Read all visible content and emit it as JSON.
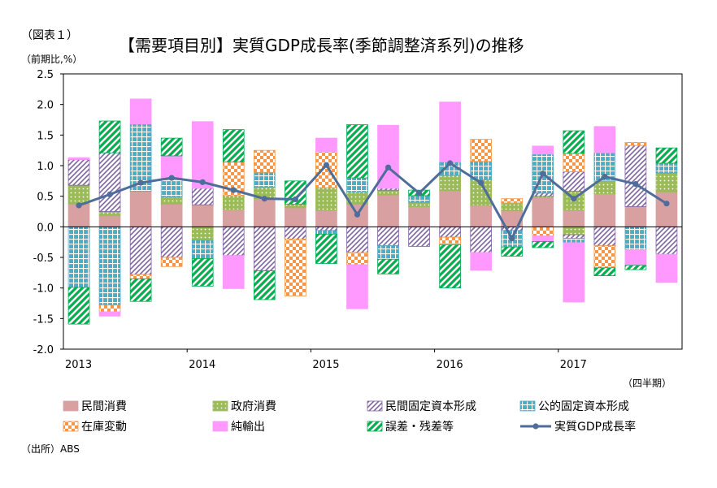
{
  "figure_label": "（図表１）",
  "unit_label": "（前期比,%）",
  "title": "【需要項目別】実質GDP成長率(季節調整済系列)の推移",
  "xaxis_unit": "（四半期）",
  "source": "（出所）ABS",
  "colors": {
    "private_consumption": "#D8A0A0",
    "government_consumption": "#9BBB59",
    "private_fixed_investment": "#8064A2",
    "public_fixed_investment": "#4BACC6",
    "inventory": "#F79646",
    "net_exports": "#FF99FF",
    "discrepancy": "#00B050",
    "gdp_line": "#4F6D9A"
  },
  "chart_data": {
    "type": "bar",
    "stacked": true,
    "title": "【需要項目別】実質GDP成長率(季節調整済系列)の推移",
    "ylabel": "（前期比,%）",
    "xlabel": "（四半期）",
    "ylim": [
      -2.0,
      2.5
    ],
    "yticks": [
      2.5,
      2.0,
      1.5,
      1.0,
      0.5,
      0.0,
      -0.5,
      -1.0,
      -1.5,
      -2.0
    ],
    "ytick_labels": [
      "2.5",
      "2.0",
      "1.5",
      "1.0",
      "0.5",
      "0.0",
      "-0.5",
      "-1.0",
      "-1.5",
      "-2.0"
    ],
    "categories": [
      "2013",
      "",
      "",
      "",
      "2014",
      "",
      "",
      "",
      "2015",
      "",
      "",
      "",
      "2016",
      "",
      "",
      "",
      "2017",
      "",
      "",
      ""
    ],
    "year_labels": [
      "2013",
      "2014",
      "2015",
      "2016",
      "2017"
    ],
    "year_start_index": [
      0,
      4,
      8,
      12,
      16
    ],
    "grid": false,
    "legend_position": "bottom",
    "series": [
      {
        "key": "private_consumption",
        "name": "民間消費",
        "pattern": "solid",
        "values": [
          0.37,
          0.18,
          0.58,
          0.37,
          0.36,
          0.28,
          0.46,
          0.31,
          0.27,
          0.37,
          0.52,
          0.33,
          0.59,
          0.35,
          0.26,
          0.48,
          0.27,
          0.54,
          0.33,
          0.57
        ]
      },
      {
        "key": "government_consumption",
        "name": "政府消費",
        "pattern": "dots",
        "values": [
          0.31,
          0.07,
          0.0,
          0.12,
          0.0,
          0.23,
          0.19,
          0.06,
          0.37,
          0.2,
          0.08,
          0.07,
          0.25,
          0.42,
          0.13,
          0.02,
          0.31,
          0.21,
          0.0,
          0.31
        ]
      },
      {
        "key": "private_fixed_investment",
        "name": "民間固定資本形成",
        "pattern": "diag",
        "values": [
          0.42,
          0.96,
          0.0,
          0.0,
          0.27,
          0.0,
          0.0,
          0.0,
          0.0,
          0.0,
          0.03,
          0.0,
          0.0,
          0.0,
          0.0,
          0.05,
          0.32,
          0.0,
          1.0,
          0.0
        ]
      },
      {
        "key": "public_fixed_investment",
        "name": "公的固定資本形成",
        "pattern": "grid",
        "values": [
          0.0,
          0.0,
          1.1,
          0.28,
          0.0,
          0.0,
          0.24,
          0.0,
          0.0,
          0.23,
          0.0,
          0.11,
          0.22,
          0.3,
          0.0,
          0.64,
          0.0,
          0.46,
          0.0,
          0.16
        ]
      },
      {
        "key": "inventory",
        "name": "在庫変動",
        "pattern": "checker",
        "values": [
          0.0,
          0.0,
          0.0,
          0.0,
          0.0,
          0.55,
          0.36,
          0.0,
          0.59,
          0.0,
          0.0,
          0.0,
          0.0,
          0.36,
          0.07,
          0.0,
          0.3,
          0.0,
          0.05,
          0.0
        ]
      },
      {
        "key": "net_exports",
        "name": "純輸出",
        "pattern": "solid",
        "values": [
          0.03,
          0.0,
          0.41,
          0.39,
          1.09,
          0.0,
          0.0,
          0.0,
          0.22,
          0.0,
          1.03,
          0.0,
          0.98,
          0.0,
          0.0,
          0.13,
          0.0,
          0.43,
          0.0,
          0.0
        ]
      },
      {
        "key": "discrepancy",
        "name": "誤差・残差等",
        "pattern": "stripe",
        "values": [
          0.0,
          0.52,
          0.0,
          0.29,
          0.0,
          0.53,
          0.0,
          0.38,
          0.0,
          0.87,
          0.0,
          0.09,
          0.0,
          0.0,
          0.0,
          0.0,
          0.37,
          0.0,
          0.0,
          0.25
        ]
      },
      {
        "key": "private_consumption_neg",
        "legend_of": "private_consumption",
        "pattern": "solid",
        "values": [
          0,
          0,
          0,
          0,
          0,
          0,
          0,
          0,
          0,
          0,
          0,
          0,
          0,
          0,
          0,
          0,
          0,
          0,
          0,
          0
        ]
      },
      {
        "key": "government_consumption_neg",
        "legend_of": "government_consumption",
        "pattern": "dots",
        "values": [
          0,
          0,
          0,
          0,
          -0.22,
          0,
          0,
          0,
          0,
          0,
          0,
          0,
          0,
          0,
          0,
          0,
          -0.13,
          0,
          0,
          0
        ]
      },
      {
        "key": "private_fixed_investment_neg",
        "legend_of": "private_fixed_investment",
        "pattern": "diag",
        "values": [
          0,
          0,
          -0.78,
          -0.5,
          0,
          -0.47,
          -0.72,
          -0.2,
          -0.06,
          -0.42,
          -0.31,
          -0.32,
          -0.17,
          -0.42,
          -0.06,
          0,
          -0.06,
          -0.31,
          0,
          -0.45
        ]
      },
      {
        "key": "public_fixed_investment_neg",
        "legend_of": "public_fixed_investment",
        "pattern": "grid",
        "values": [
          -0.99,
          -1.28,
          0,
          0,
          -0.3,
          0,
          0,
          0,
          -0.06,
          0,
          -0.22,
          0,
          0,
          0,
          -0.27,
          0,
          -0.07,
          0,
          -0.38,
          0
        ]
      },
      {
        "key": "inventory_neg",
        "legend_of": "inventory",
        "pattern": "checker",
        "values": [
          0,
          -0.11,
          -0.07,
          -0.15,
          0,
          0,
          0,
          -0.93,
          0,
          -0.2,
          0,
          0,
          -0.12,
          0,
          0,
          -0.15,
          0,
          -0.36,
          0,
          0
        ]
      },
      {
        "key": "net_exports_neg",
        "legend_of": "net_exports",
        "pattern": "solid",
        "values": [
          0,
          -0.07,
          0,
          0,
          0,
          -0.54,
          0,
          0,
          0,
          -0.72,
          0,
          0,
          0,
          -0.29,
          0,
          -0.09,
          -0.97,
          0,
          -0.25,
          -0.46
        ]
      },
      {
        "key": "discrepancy_neg",
        "legend_of": "discrepancy",
        "pattern": "stripe",
        "values": [
          -0.6,
          0,
          -0.37,
          0,
          -0.45,
          0,
          -0.47,
          0,
          -0.48,
          0,
          -0.24,
          0,
          -0.71,
          0,
          -0.15,
          -0.1,
          0,
          -0.13,
          -0.07,
          0
        ]
      }
    ],
    "line": {
      "key": "gdp_line",
      "name": "実質GDP成長率",
      "values": [
        0.35,
        0.53,
        0.72,
        0.8,
        0.73,
        0.6,
        0.46,
        0.45,
        1.01,
        0.2,
        0.97,
        0.55,
        1.04,
        0.72,
        -0.19,
        0.87,
        0.46,
        0.82,
        0.7,
        0.38
      ]
    }
  },
  "legend": [
    {
      "key": "private_consumption",
      "label": "民間消費",
      "pattern": "solid"
    },
    {
      "key": "government_consumption",
      "label": "政府消費",
      "pattern": "dots"
    },
    {
      "key": "private_fixed_investment",
      "label": "民間固定資本形成",
      "pattern": "diag"
    },
    {
      "key": "public_fixed_investment",
      "label": "公的固定資本形成",
      "pattern": "grid"
    },
    {
      "key": "inventory",
      "label": "在庫変動",
      "pattern": "checker"
    },
    {
      "key": "net_exports",
      "label": "純輸出",
      "pattern": "solid"
    },
    {
      "key": "discrepancy",
      "label": "誤差・残差等",
      "pattern": "stripe"
    },
    {
      "key": "gdp_line",
      "label": "実質GDP成長率",
      "pattern": "line"
    }
  ]
}
